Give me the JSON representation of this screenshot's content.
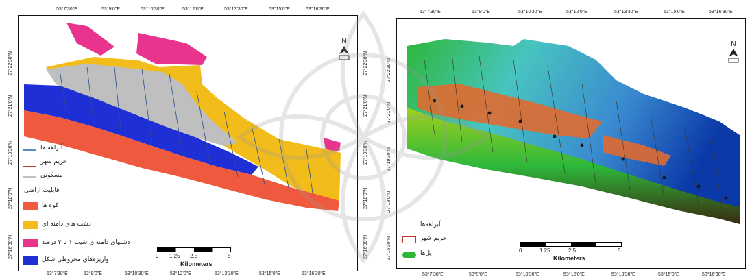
{
  "colors": {
    "mountains": "#ef5a3e",
    "piedmont_plains": "#f2bd1a",
    "sloped_plains": "#e8348d",
    "alluvial_fans": "#1f2fd6",
    "settlement": "#bfbfbf",
    "dem_low": "#0b3aa8",
    "dem_mid": "#48c4c0",
    "dem_high": "#2db83a",
    "dem_peak": "#3a2a10",
    "urban_dem": "#e06a30"
  },
  "left_map": {
    "top_ticks": [
      "53°7'30\"E",
      "53°9'0\"E",
      "53°10'30\"E",
      "53°12'0\"E",
      "53°13'30\"E",
      "53°15'0\"E",
      "53°16'30\"E"
    ],
    "bottom_ticks": [
      "53°7'30\"E",
      "53°9'0\"E",
      "53°10'30\"E",
      "53°12'0\"E",
      "53°13'30\"E",
      "53°15'0\"E",
      "53°16'30\"E"
    ],
    "left_ticks": [
      "27°22'30\"N",
      "27°21'0\"N",
      "27°19'30\"N",
      "27°18'0\"N",
      "27°16'30\"N"
    ],
    "right_ticks": [
      "27°22'30\"N",
      "27°21'0\"N",
      "27°19'30\"N",
      "27°18'0\"N",
      "27°16'30\"N"
    ],
    "north_label": "N",
    "legend": {
      "streams": "آبراهه ها",
      "city_boundary": "حریم شهر",
      "settlement": "مسکونی",
      "capability_title": "قابلیت اراضی",
      "mountains": "کوه ها",
      "piedmont": "دشت های دامنه ای",
      "sloped": "دشتهای دامنه‌ای شیب ۱ تا ۳ درصد",
      "alluvial": "واریزه‌های مخروطی شکل"
    },
    "scale": {
      "labels": [
        "0",
        "1.25",
        "2.5",
        "5"
      ],
      "unit": "Kilometers"
    }
  },
  "right_map": {
    "top_ticks": [
      "53°7'30\"E",
      "53°9'0\"E",
      "53°10'30\"E",
      "53°12'0\"E",
      "53°13'30\"E",
      "53°15'0\"E",
      "53°16'30\"E"
    ],
    "bottom_ticks": [
      "53°7'30\"E",
      "53°9'0\"E",
      "53°10'30\"E",
      "53°12'0\"E",
      "53°13'30\"E",
      "53°15'0\"E",
      "53°16'30\"E"
    ],
    "left_ticks": [
      "27°22'30\"N",
      "27°21'0\"N",
      "27°19'30\"N",
      "27°18'0\"N",
      "27°16'30\"N"
    ],
    "right_ticks": [
      "27°22'30\"N",
      "27°21'0\"N",
      "27°19'30\"N",
      "27°18'0\"N",
      "27°16'30\"N"
    ],
    "north_label": "N",
    "legend": {
      "streams": "آبراهه‌ها",
      "city_boundary": "حریم شهر",
      "bridges": "پل‌ها"
    },
    "scale": {
      "labels": [
        "0",
        "1.25",
        "2.5",
        "5"
      ],
      "unit": "Kilometers"
    }
  }
}
